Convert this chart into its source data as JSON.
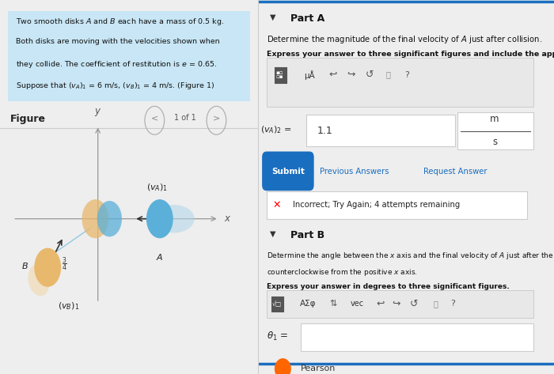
{
  "bg_color": "#eeeeee",
  "left_panel_bg": "#ffffff",
  "right_panel_bg": "#ffffff",
  "problem_text_bg": "#c8e6f5",
  "figure_label": "Figure",
  "page_label": "1 of 1",
  "part_a_label": "Part A",
  "part_a_desc": "Determine the magnitude of the final velocity of A just after collision.",
  "part_a_express": "Express your answer to three significant figures and include the appropriate units.",
  "answer_value": "1.1",
  "units_top": "m",
  "units_bottom": "s",
  "submit_label": "Submit",
  "prev_ans_label": "Previous Answers",
  "req_ans_label": "Request Answer",
  "incorrect_msg": "Incorrect; Try Again; 4 attempts remaining",
  "part_b_label": "Part B",
  "part_b_desc1": "Determine the angle between the x axis and the final velocity of A just after the collision, measured",
  "part_b_desc2": "counterclockwise from the positive x axis.",
  "part_b_express": "Express your answer in degrees to three significant figures.",
  "theta_prefix": "θ₁ =",
  "pearson_label": "Pearson",
  "disk_A_color": "#5ab0d8",
  "disk_A_shadow": "#aad4ea",
  "disk_B_color": "#e8b86d",
  "disk_B_shadow": "#f0d4a0",
  "axis_color": "#999999",
  "arrow_color": "#333333",
  "submit_bg": "#1a6ebf",
  "border_color": "#cccccc",
  "blue_line_color": "#1a6ebf",
  "pearson_orange": "#ff6600"
}
